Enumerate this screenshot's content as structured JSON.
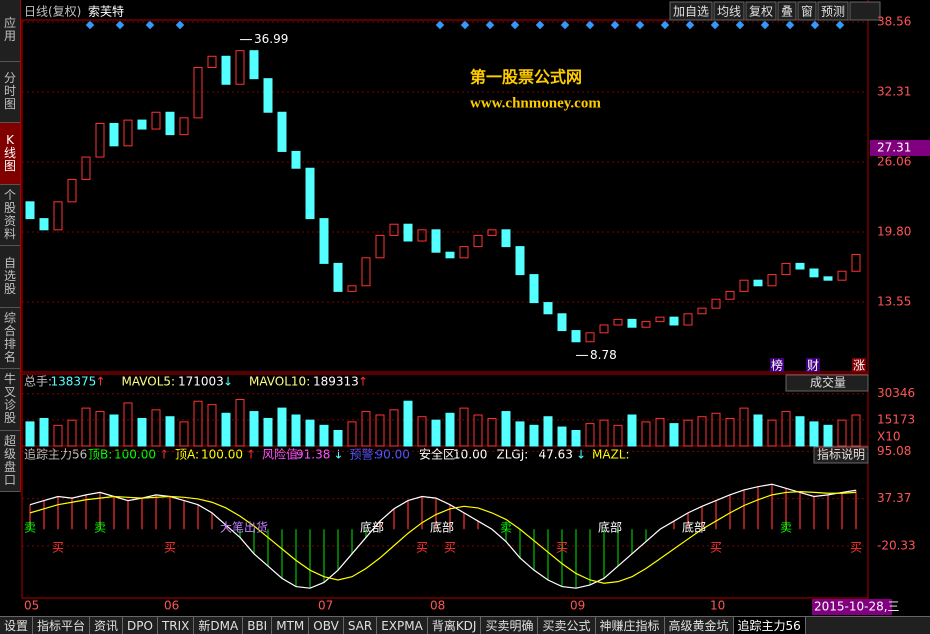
{
  "sidebar": [
    "应用",
    "分时图",
    "K线图",
    "个股资料",
    "自选股",
    "综合排名",
    "牛叉诊股",
    "超级盘口"
  ],
  "header": {
    "title": "日线(复权)",
    "stock": "索芙特",
    "buttons": [
      "加自选",
      "均线",
      "复权",
      "叠",
      "窗",
      "预测"
    ]
  },
  "watermark": {
    "name": "第一股票公式网",
    "url": "www.chnmoney.com"
  },
  "price": {
    "ylim": [
      7.3,
      38.74
    ],
    "yticks": [
      38.56,
      32.31,
      26.06,
      {
        "value": 19.8,
        "label": "19.80"
      },
      13.55
    ],
    "current": 27.31,
    "high": {
      "value": 36.99,
      "index": 15
    },
    "low": {
      "value": 8.78,
      "index": 39
    },
    "open": [
      22.5,
      21.0,
      20.0,
      22.5,
      24.5,
      26.5,
      29.5,
      27.5,
      29.8,
      29.0,
      30.5,
      28.5,
      30.0,
      34.5,
      35.5,
      33.0,
      36.0,
      33.5,
      30.5,
      27.0,
      25.5,
      21.0,
      17.0,
      14.5,
      15.0,
      17.5,
      19.5,
      20.5,
      19.0,
      20.0,
      18.0,
      17.5,
      18.5,
      19.5,
      20.0,
      18.5,
      16.0,
      13.5,
      12.5,
      11.0,
      10.0,
      10.8,
      11.5,
      12.0,
      11.3,
      11.8,
      12.2,
      11.5,
      12.5,
      13.0,
      13.8,
      14.5,
      15.5,
      15.0,
      16.0,
      17.0,
      16.5,
      15.8,
      15.5,
      16.3
    ],
    "close": [
      21.0,
      20.0,
      22.5,
      24.5,
      26.5,
      29.5,
      27.5,
      29.8,
      29.0,
      30.5,
      28.5,
      30.0,
      34.5,
      35.5,
      33.0,
      36.0,
      33.5,
      30.5,
      27.0,
      25.5,
      21.0,
      17.0,
      14.5,
      15.0,
      17.5,
      19.5,
      20.5,
      19.0,
      20.0,
      18.0,
      17.5,
      18.5,
      19.5,
      20.0,
      18.5,
      16.0,
      13.5,
      12.5,
      11.0,
      10.0,
      10.8,
      11.5,
      12.0,
      11.3,
      11.8,
      12.2,
      11.5,
      12.5,
      13.0,
      13.8,
      14.5,
      15.5,
      15.0,
      16.0,
      17.0,
      16.5,
      15.8,
      15.5,
      16.3,
      17.8
    ],
    "badges": [
      "榜",
      "财",
      "涨"
    ]
  },
  "volume": {
    "items": [
      {
        "name": "总手:",
        "value": 138375,
        "arrow": "↑"
      },
      {
        "name": "MAVOL5:",
        "value": 171003,
        "arrow": "↓"
      },
      {
        "name": "MAVOL10:",
        "value": 189313,
        "arrow": "↑"
      }
    ],
    "button": "成交量",
    "ylim": [
      0,
      36000
    ],
    "yticks": [
      30346,
      15173
    ],
    "unit": "X10",
    "values": [
      14000,
      16000,
      12000,
      15000,
      22000,
      20000,
      18000,
      25000,
      16000,
      21000,
      17000,
      14000,
      26000,
      24000,
      19000,
      27000,
      20000,
      16000,
      22000,
      18000,
      15000,
      12000,
      9000,
      14000,
      20000,
      18000,
      21000,
      26000,
      17000,
      15000,
      19000,
      22000,
      18000,
      16000,
      20000,
      14000,
      12000,
      17000,
      11000,
      9000,
      13000,
      15000,
      12000,
      18000,
      14000,
      16000,
      13000,
      15000,
      17000,
      19000,
      16000,
      22000,
      18000,
      15000,
      20000,
      17000,
      14000,
      12000,
      15000,
      18000
    ]
  },
  "indicator": {
    "name": "追踪主力56",
    "items": [
      {
        "name": "顶B:",
        "value": {
          "value": 100,
          "label": "100.00"
        },
        "arrow": "↑",
        "color": "#00ff00"
      },
      {
        "name": "顶A:",
        "value": {
          "value": 100,
          "label": "100.00"
        },
        "arrow": "↑",
        "color": "#ffff00"
      },
      {
        "name": "风险值:",
        "value": 91.38,
        "arrow": "↓",
        "color": "#ff55ff"
      },
      {
        "name": "预警:",
        "value": {
          "value": 90,
          "label": "90.00"
        },
        "arrow": "",
        "color": "#5555ff"
      },
      {
        "name": "安全区:",
        "value": {
          "value": 10,
          "label": "10.00"
        },
        "arrow": "",
        "color": "#ffffff"
      },
      {
        "name": "ZLGJ:",
        "value": 47.63,
        "arrow": "↓",
        "color": "#ffffff"
      },
      {
        "name": "MAZL:",
        "value": null,
        "arrow": "",
        "color": "#ffff00"
      }
    ],
    "button": "指标说明",
    "ylim": [
      -84,
      101.7
    ],
    "yticks": [
      95.08,
      37.37,
      -20.33
    ],
    "zlgj": [
      30,
      35,
      40,
      38,
      42,
      45,
      40,
      35,
      38,
      42,
      40,
      35,
      30,
      20,
      5,
      -10,
      -30,
      -45,
      -60,
      -70,
      -72,
      -65,
      -50,
      -30,
      -10,
      10,
      25,
      35,
      40,
      38,
      30,
      20,
      10,
      0,
      -15,
      -35,
      -50,
      -62,
      -70,
      -72,
      -68,
      -60,
      -45,
      -30,
      -15,
      0,
      10,
      20,
      28,
      35,
      42,
      48,
      52,
      55,
      50,
      45,
      40,
      42,
      45,
      47.63
    ],
    "mazl": [
      20,
      25,
      30,
      33,
      36,
      38,
      40,
      39,
      38,
      39,
      40,
      39,
      37,
      33,
      26,
      16,
      4,
      -10,
      -24,
      -38,
      -50,
      -58,
      -62,
      -58,
      -48,
      -35,
      -20,
      -5,
      8,
      18,
      25,
      28,
      26,
      20,
      12,
      0,
      -14,
      -28,
      -42,
      -54,
      -62,
      -66,
      -64,
      -58,
      -48,
      -36,
      -24,
      -12,
      0,
      10,
      20,
      29,
      36,
      42,
      45,
      46,
      45,
      44,
      44,
      45
    ],
    "signals": [
      {
        "label": "卖",
        "index": 0
      },
      {
        "label": "买",
        "index": 2
      },
      {
        "label": "卖",
        "index": 5
      },
      {
        "label": "买",
        "index": 10
      },
      {
        "label": "大笔出货",
        "index": 14
      },
      {
        "label": "底部",
        "index": 24
      },
      {
        "label": "买",
        "index": 28
      },
      {
        "label": "底部",
        "index": 29
      },
      {
        "label": "买",
        "index": 30
      },
      {
        "label": "卖",
        "index": 34
      },
      {
        "label": "底部",
        "index": 41
      },
      {
        "label": "买",
        "index": 38
      },
      {
        "label": "底部",
        "index": 47
      },
      {
        "label": "买",
        "index": 49
      },
      {
        "label": "卖",
        "index": 54
      },
      {
        "label": "买",
        "index": 59
      }
    ]
  },
  "xlabels": [
    {
      "label": "05",
      "index": 0
    },
    {
      "label": "06",
      "index": 10
    },
    {
      "label": "07",
      "index": 21
    },
    {
      "label": "08",
      "index": 29
    },
    {
      "label": "09",
      "index": 39
    },
    {
      "label": "10",
      "index": 49
    }
  ],
  "date": "2015-10-28,三",
  "tabs": [
    "设置",
    "指标平台",
    "资讯",
    "DPO",
    "TRIX",
    "新DMA",
    "BBI",
    "MTM",
    "OBV",
    "SAR",
    "EXPMA",
    "背离KDJ",
    "买卖明确",
    "买卖公式",
    "神赚庄指标",
    "高级黄金坑",
    "追踪主力56"
  ]
}
